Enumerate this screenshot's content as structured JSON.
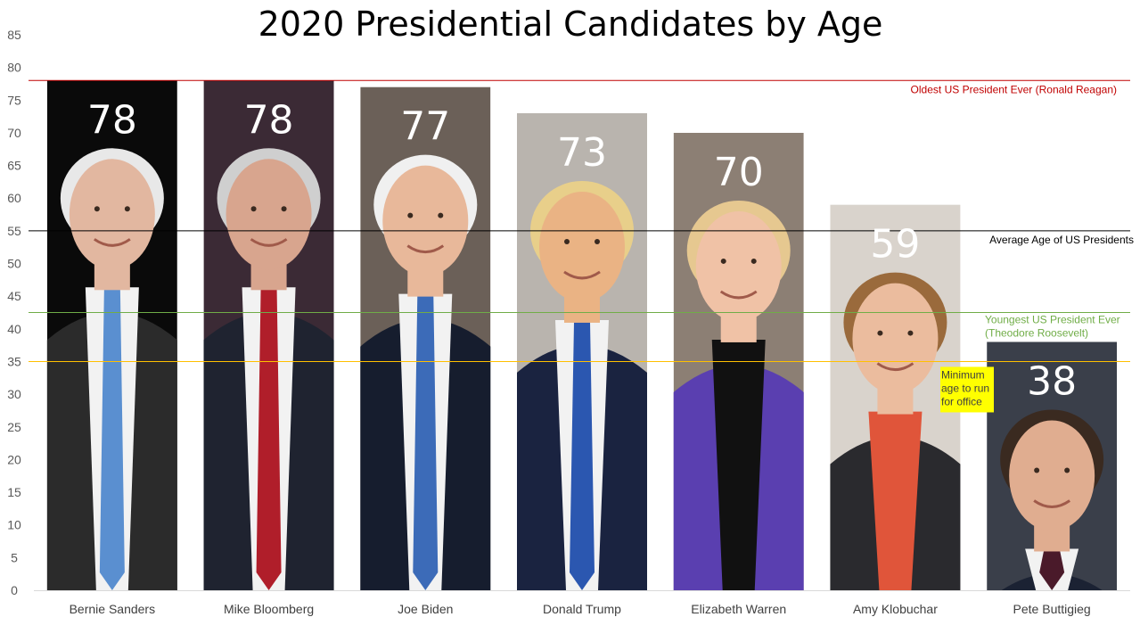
{
  "chart_data": {
    "type": "bar",
    "title": "2020 Presidential Candidates by Age",
    "xlabel": "",
    "ylabel": "",
    "categories": [
      "Bernie Sanders",
      "Mike Bloomberg",
      "Joe Biden",
      "Donald Trump",
      "Elizabeth Warren",
      "Amy Klobuchar",
      "Pete Buttigieg"
    ],
    "values": [
      78,
      78,
      77,
      73,
      70,
      59,
      38
    ],
    "ylim": [
      0,
      85
    ],
    "yticks": [
      0,
      5,
      10,
      15,
      20,
      25,
      30,
      35,
      40,
      45,
      50,
      55,
      60,
      65,
      70,
      75,
      80,
      85
    ],
    "grid": false,
    "bar_fill": "photo portraits of each candidate",
    "reference_lines": [
      {
        "value": 78,
        "color": "#c00000",
        "label": "Oldest US President Ever (Ronald Reagan)"
      },
      {
        "value": 55,
        "color": "#000000",
        "label": "Average Age of US Presidents"
      },
      {
        "value": 42.5,
        "color": "#70ad47",
        "label": "Youngest US President Ever (Theodore Roosevelt)"
      },
      {
        "value": 35,
        "color": "#ffc000",
        "label": "Minimum age to run for office",
        "highlight": "#ffff00"
      }
    ]
  }
}
